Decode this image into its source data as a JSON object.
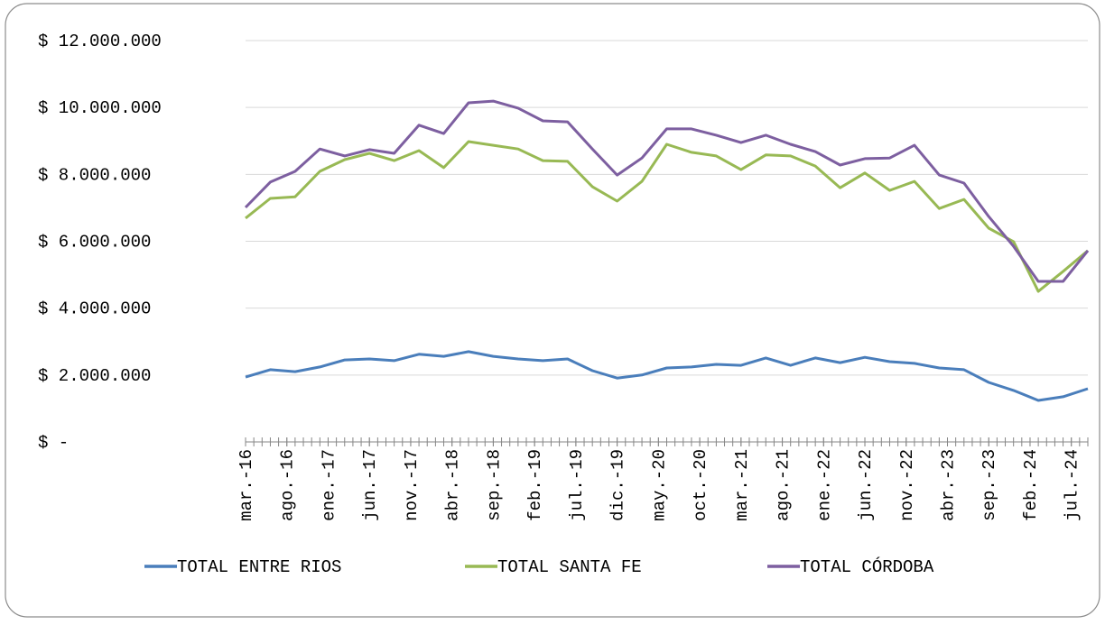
{
  "chart_data": {
    "type": "line",
    "x": [
      "2016-03",
      "2016-06",
      "2016-09",
      "2016-12",
      "2017-03",
      "2017-06",
      "2017-09",
      "2017-12",
      "2018-03",
      "2018-06",
      "2018-09",
      "2018-12",
      "2019-03",
      "2019-06",
      "2019-09",
      "2019-12",
      "2020-03",
      "2020-06",
      "2020-09",
      "2020-12",
      "2021-03",
      "2021-06",
      "2021-09",
      "2021-12",
      "2022-03",
      "2022-06",
      "2022-09",
      "2022-12",
      "2023-03",
      "2023-06",
      "2023-09",
      "2023-12",
      "2024-03",
      "2024-06",
      "2024-09"
    ],
    "xlim": [
      "2016-03",
      "2024-09"
    ],
    "xticks": [
      {
        "value": "2016-03",
        "label": "mar.-16"
      },
      {
        "value": "2016-08",
        "label": "ago.-16"
      },
      {
        "value": "2017-01",
        "label": "ene.-17"
      },
      {
        "value": "2017-06",
        "label": "jun.-17"
      },
      {
        "value": "2017-11",
        "label": "nov.-17"
      },
      {
        "value": "2018-04",
        "label": "abr.-18"
      },
      {
        "value": "2018-09",
        "label": "sep.-18"
      },
      {
        "value": "2019-02",
        "label": "feb.-19"
      },
      {
        "value": "2019-07",
        "label": "jul.-19"
      },
      {
        "value": "2019-12",
        "label": "dic.-19"
      },
      {
        "value": "2020-05",
        "label": "may.-20"
      },
      {
        "value": "2020-10",
        "label": "oct.-20"
      },
      {
        "value": "2021-03",
        "label": "mar.-21"
      },
      {
        "value": "2021-08",
        "label": "ago.-21"
      },
      {
        "value": "2022-01",
        "label": "ene.-22"
      },
      {
        "value": "2022-06",
        "label": "jun.-22"
      },
      {
        "value": "2022-11",
        "label": "nov.-22"
      },
      {
        "value": "2023-04",
        "label": "abr.-23"
      },
      {
        "value": "2023-09",
        "label": "sep.-23"
      },
      {
        "value": "2024-02",
        "label": "feb.-24"
      },
      {
        "value": "2024-07",
        "label": "jul.-24"
      }
    ],
    "ylim": [
      0,
      12000000
    ],
    "yticks": [
      {
        "value": 0,
        "label": "$ -"
      },
      {
        "value": 2000000,
        "label": "$ 2.000.000"
      },
      {
        "value": 4000000,
        "label": "$ 4.000.000"
      },
      {
        "value": 6000000,
        "label": "$ 6.000.000"
      },
      {
        "value": 8000000,
        "label": "$ 8.000.000"
      },
      {
        "value": 10000000,
        "label": "$ 10.000.000"
      },
      {
        "value": 12000000,
        "label": "$ 12.000.000"
      }
    ],
    "grid": true,
    "legend": "bottom",
    "series": [
      {
        "name": "TOTAL ENTRE RIOS",
        "color": "#4a7ebb",
        "values": [
          1940000,
          2160000,
          2100000,
          2240000,
          2450000,
          2480000,
          2430000,
          2620000,
          2560000,
          2700000,
          2560000,
          2480000,
          2430000,
          2480000,
          2130000,
          1910000,
          2000000,
          2210000,
          2240000,
          2320000,
          2290000,
          2510000,
          2290000,
          2510000,
          2370000,
          2530000,
          2400000,
          2350000,
          2210000,
          2160000,
          1780000,
          1540000,
          1240000,
          1350000,
          1590000
        ]
      },
      {
        "name": "TOTAL SANTA FE",
        "color": "#98b954",
        "values": [
          6690000,
          7280000,
          7330000,
          8090000,
          8440000,
          8630000,
          8410000,
          8710000,
          8200000,
          8980000,
          8870000,
          8760000,
          8410000,
          8390000,
          7630000,
          7200000,
          7790000,
          8900000,
          8660000,
          8550000,
          8140000,
          8580000,
          8550000,
          8250000,
          7600000,
          8040000,
          7520000,
          7790000,
          6980000,
          7250000,
          6390000,
          5990000,
          4500000,
          5100000,
          5720000
        ]
      },
      {
        "name": "TOTAL CÓRDOBA",
        "color": "#7d5fa0",
        "values": [
          7010000,
          7770000,
          8090000,
          8760000,
          8550000,
          8740000,
          8630000,
          9470000,
          9220000,
          10140000,
          10190000,
          9980000,
          9600000,
          9570000,
          8760000,
          7980000,
          8490000,
          9360000,
          9360000,
          9170000,
          8950000,
          9170000,
          8900000,
          8680000,
          8280000,
          8470000,
          8490000,
          8870000,
          7980000,
          7740000,
          6740000,
          5850000,
          4800000,
          4800000,
          5720000
        ]
      }
    ]
  }
}
